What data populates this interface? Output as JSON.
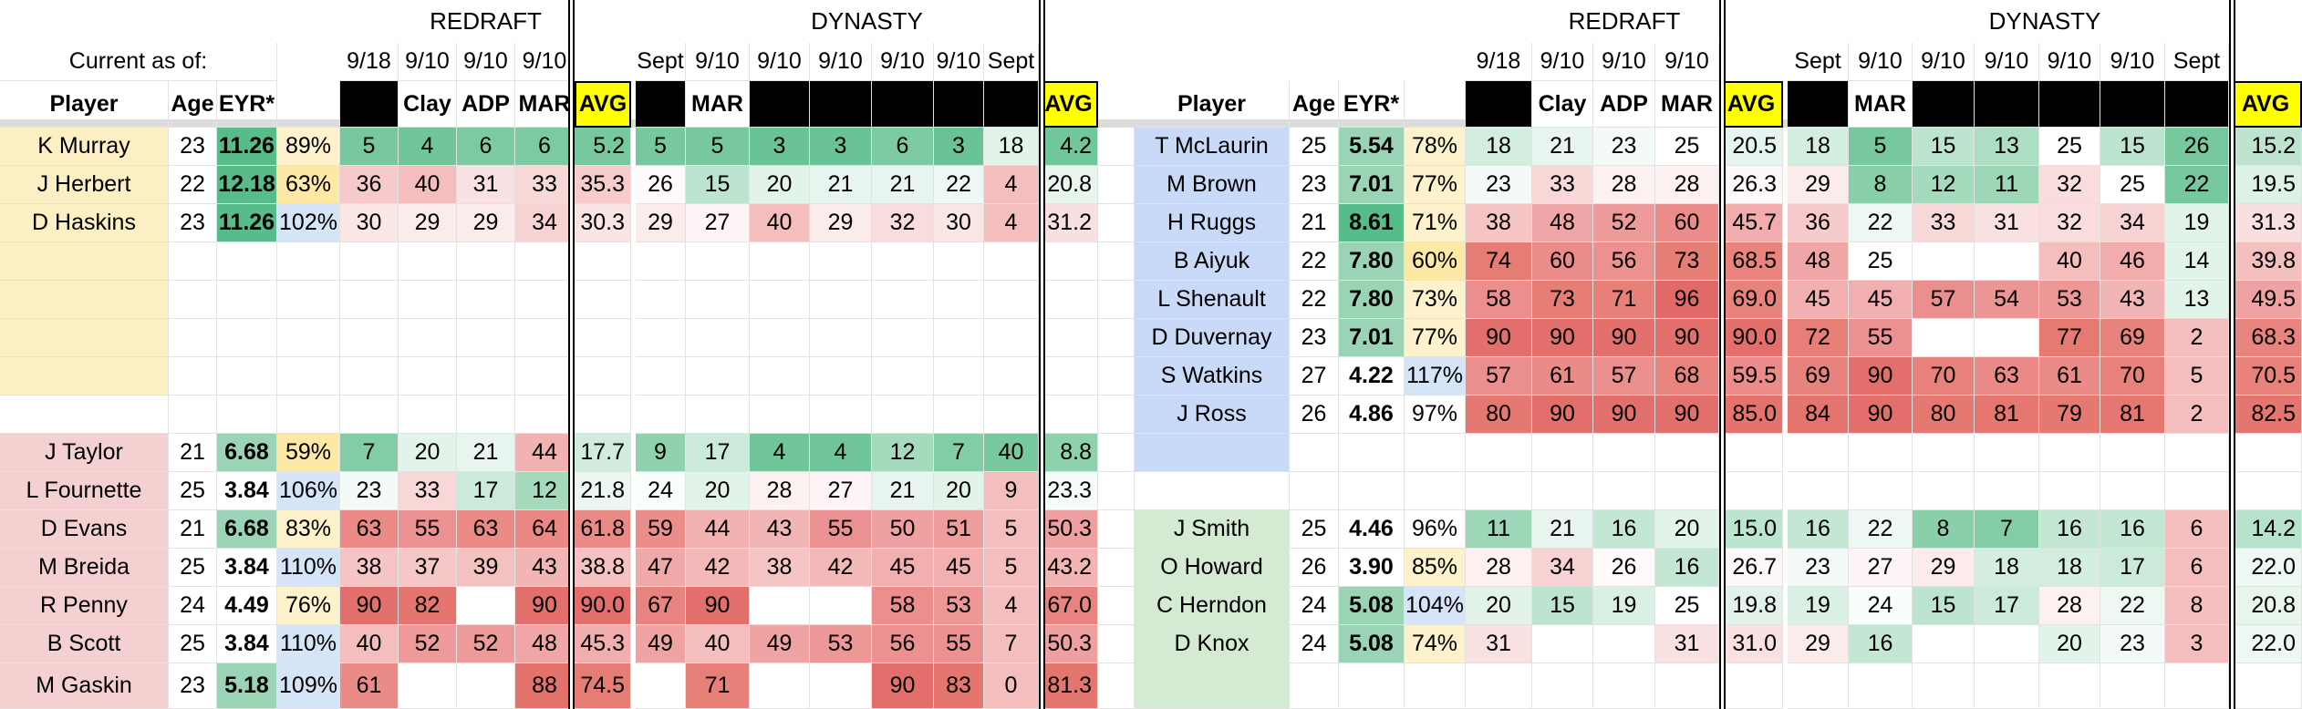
{
  "colors": {
    "qb_group": "#fdefc4",
    "rb_group": "#f5d0d0",
    "wr_group": "#c9daf8",
    "te_group": "#d5ead2",
    "header_dark": "#000000",
    "avg_header": "#ffff00",
    "grid": "#e2e2e2"
  },
  "headers": {
    "redraft": "REDRAFT",
    "dynasty": "DYNASTY",
    "current_as_of": "Current as of:",
    "player": "Player",
    "age": "Age",
    "eyr": "EYR*",
    "redraft_dates": [
      "9/18",
      "9/10",
      "9/10",
      "9/10"
    ],
    "redraft_sources": [
      "",
      "Clay",
      "ADP",
      "MAR"
    ],
    "dynasty_dates": [
      "Sept",
      "9/10",
      "9/10",
      "9/10",
      "9/10",
      "9/10",
      "Sept"
    ],
    "dynasty_sources": [
      "",
      "MAR",
      "",
      "",
      "",
      "",
      ""
    ],
    "avg": "AVG"
  },
  "left_table": [
    {
      "name": "K Murray",
      "age": "23",
      "eyr": "11.26",
      "pct": "89%",
      "r": [
        "5",
        "4",
        "6",
        "6"
      ],
      "ravg": "5.2",
      "d": [
        "5",
        "5",
        "3",
        "3",
        "6",
        "3",
        "18"
      ],
      "davg": "4.2",
      "group": "qb"
    },
    {
      "name": "J Herbert",
      "age": "22",
      "eyr": "12.18",
      "pct": "63%",
      "r": [
        "36",
        "40",
        "31",
        "33"
      ],
      "ravg": "35.3",
      "d": [
        "26",
        "15",
        "20",
        "21",
        "21",
        "22",
        "4"
      ],
      "davg": "20.8",
      "group": "qb"
    },
    {
      "name": "D Haskins",
      "age": "23",
      "eyr": "11.26",
      "pct": "102%",
      "r": [
        "30",
        "29",
        "29",
        "34"
      ],
      "ravg": "30.3",
      "d": [
        "29",
        "27",
        "40",
        "29",
        "32",
        "30",
        "4"
      ],
      "davg": "31.2",
      "group": "qb"
    },
    {
      "name": "",
      "group": "qb_blank"
    },
    {
      "name": "",
      "group": "qb_blank"
    },
    {
      "name": "",
      "group": "qb_blank"
    },
    {
      "name": "",
      "group": "qb_blank"
    },
    {
      "name": "",
      "group": "blank"
    },
    {
      "name": "J Taylor",
      "age": "21",
      "eyr": "6.68",
      "pct": "59%",
      "r": [
        "7",
        "20",
        "21",
        "44"
      ],
      "ravg": "17.7",
      "d": [
        "9",
        "17",
        "4",
        "4",
        "12",
        "7",
        "40"
      ],
      "davg": "8.8",
      "group": "rb"
    },
    {
      "name": "L Fournette",
      "age": "25",
      "eyr": "3.84",
      "pct": "106%",
      "r": [
        "23",
        "33",
        "17",
        "12"
      ],
      "ravg": "21.8",
      "d": [
        "24",
        "20",
        "28",
        "27",
        "21",
        "20",
        "9"
      ],
      "davg": "23.3",
      "group": "rb"
    },
    {
      "name": "D Evans",
      "age": "21",
      "eyr": "6.68",
      "pct": "83%",
      "r": [
        "63",
        "55",
        "63",
        "64"
      ],
      "ravg": "61.8",
      "d": [
        "59",
        "44",
        "43",
        "55",
        "50",
        "51",
        "5"
      ],
      "davg": "50.3",
      "group": "rb"
    },
    {
      "name": "M Breida",
      "age": "25",
      "eyr": "3.84",
      "pct": "110%",
      "r": [
        "38",
        "37",
        "39",
        "43"
      ],
      "ravg": "38.8",
      "d": [
        "47",
        "42",
        "38",
        "42",
        "45",
        "45",
        "5"
      ],
      "davg": "43.2",
      "group": "rb"
    },
    {
      "name": "R Penny",
      "age": "24",
      "eyr": "4.49",
      "pct": "76%",
      "r": [
        "90",
        "82",
        "",
        "90"
      ],
      "ravg": "90.0",
      "d": [
        "67",
        "90",
        "",
        "",
        "58",
        "53",
        "4"
      ],
      "davg": "67.0",
      "group": "rb"
    },
    {
      "name": "B Scott",
      "age": "25",
      "eyr": "3.84",
      "pct": "110%",
      "r": [
        "40",
        "52",
        "52",
        "48"
      ],
      "ravg": "45.3",
      "d": [
        "49",
        "40",
        "49",
        "53",
        "56",
        "55",
        "7"
      ],
      "davg": "50.3",
      "group": "rb"
    },
    {
      "name": "M Gaskin",
      "age": "23",
      "eyr": "5.18",
      "pct": "109%",
      "r": [
        "61",
        "",
        "",
        "88"
      ],
      "ravg": "74.5",
      "d": [
        "",
        "71",
        "",
        "",
        "90",
        "83",
        "0"
      ],
      "davg": "81.3",
      "group": "rb"
    }
  ],
  "right_table": [
    {
      "name": "T McLaurin",
      "age": "25",
      "eyr": "5.54",
      "pct": "78%",
      "r": [
        "18",
        "21",
        "23",
        "25"
      ],
      "ravg": "20.5",
      "d": [
        "18",
        "5",
        "15",
        "13",
        "25",
        "15",
        "26"
      ],
      "davg": "15.2",
      "group": "wr"
    },
    {
      "name": "M Brown",
      "age": "23",
      "eyr": "7.01",
      "pct": "77%",
      "r": [
        "23",
        "33",
        "28",
        "28"
      ],
      "ravg": "26.3",
      "d": [
        "29",
        "8",
        "12",
        "11",
        "32",
        "25",
        "22"
      ],
      "davg": "19.5",
      "group": "wr"
    },
    {
      "name": "H Ruggs",
      "age": "21",
      "eyr": "8.61",
      "pct": "71%",
      "r": [
        "38",
        "48",
        "52",
        "60"
      ],
      "ravg": "45.7",
      "d": [
        "36",
        "22",
        "33",
        "31",
        "32",
        "34",
        "19"
      ],
      "davg": "31.3",
      "group": "wr"
    },
    {
      "name": "B Aiyuk",
      "age": "22",
      "eyr": "7.80",
      "pct": "60%",
      "r": [
        "74",
        "60",
        "56",
        "73"
      ],
      "ravg": "68.5",
      "d": [
        "48",
        "25",
        "",
        "",
        "40",
        "46",
        "14"
      ],
      "davg": "39.8",
      "group": "wr"
    },
    {
      "name": "L Shenault",
      "age": "22",
      "eyr": "7.80",
      "pct": "73%",
      "r": [
        "58",
        "73",
        "71",
        "96"
      ],
      "ravg": "69.0",
      "d": [
        "45",
        "45",
        "57",
        "54",
        "53",
        "43",
        "13"
      ],
      "davg": "49.5",
      "group": "wr"
    },
    {
      "name": "D Duvernay",
      "age": "23",
      "eyr": "7.01",
      "pct": "77%",
      "r": [
        "90",
        "90",
        "90",
        "90"
      ],
      "ravg": "90.0",
      "d": [
        "72",
        "55",
        "",
        "",
        "77",
        "69",
        "2"
      ],
      "davg": "68.3",
      "group": "wr"
    },
    {
      "name": "S Watkins",
      "age": "27",
      "eyr": "4.22",
      "pct": "117%",
      "r": [
        "57",
        "61",
        "57",
        "68"
      ],
      "ravg": "59.5",
      "d": [
        "69",
        "90",
        "70",
        "63",
        "61",
        "70",
        "5"
      ],
      "davg": "70.5",
      "group": "wr"
    },
    {
      "name": "J Ross",
      "age": "26",
      "eyr": "4.86",
      "pct": "97%",
      "r": [
        "80",
        "90",
        "90",
        "90"
      ],
      "ravg": "85.0",
      "d": [
        "84",
        "90",
        "80",
        "81",
        "79",
        "81",
        "2"
      ],
      "davg": "82.5",
      "group": "wr"
    },
    {
      "name": "",
      "group": "wr_blank"
    },
    {
      "name": "",
      "group": "blank"
    },
    {
      "name": "J Smith",
      "age": "25",
      "eyr": "4.46",
      "pct": "96%",
      "r": [
        "11",
        "21",
        "16",
        "20"
      ],
      "ravg": "15.0",
      "d": [
        "16",
        "22",
        "8",
        "7",
        "16",
        "16",
        "6"
      ],
      "davg": "14.2",
      "group": "te"
    },
    {
      "name": "O Howard",
      "age": "26",
      "eyr": "3.90",
      "pct": "85%",
      "r": [
        "28",
        "34",
        "26",
        "16"
      ],
      "ravg": "26.7",
      "d": [
        "23",
        "27",
        "29",
        "18",
        "18",
        "17",
        "6"
      ],
      "davg": "22.0",
      "group": "te"
    },
    {
      "name": "C Herndon",
      "age": "24",
      "eyr": "5.08",
      "pct": "104%",
      "r": [
        "20",
        "15",
        "19",
        "25"
      ],
      "ravg": "19.8",
      "d": [
        "19",
        "24",
        "15",
        "17",
        "28",
        "22",
        "8"
      ],
      "davg": "20.8",
      "group": "te"
    },
    {
      "name": "D Knox",
      "age": "24",
      "eyr": "5.08",
      "pct": "74%",
      "r": [
        "31",
        "",
        "",
        "31"
      ],
      "ravg": "31.0",
      "d": [
        "29",
        "16",
        "",
        "",
        "20",
        "23",
        "3"
      ],
      "davg": "22.0",
      "group": "te"
    },
    {
      "name": "",
      "group": "te_blank"
    }
  ]
}
